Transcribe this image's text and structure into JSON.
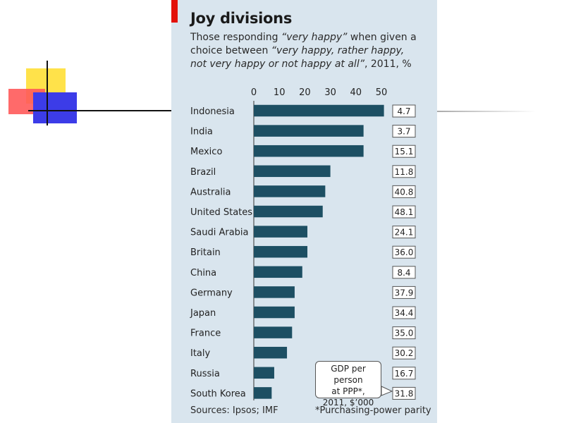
{
  "title": "Joy divisions",
  "subtitle_parts": [
    "Those responding ",
    "“very happy”",
    " when given a choice between ",
    "“very happy, rather happy, not very happy or not happy at all”",
    ", 2011, %"
  ],
  "sources": "Sources: Ipsos; IMF",
  "footnote": "*Purchasing-power parity",
  "callout_lines": [
    "GDP per person",
    "at PPP*,",
    "2011, $’000"
  ],
  "colors": {
    "bar": "#1d4f63",
    "panel": "#d9e5ee",
    "accent": "#e3120b"
  },
  "chart_data": {
    "type": "bar",
    "orientation": "horizontal",
    "xlim": [
      0,
      50
    ],
    "ticks": [
      0,
      10,
      20,
      30,
      40,
      50
    ],
    "categories": [
      "Indonesia",
      "India",
      "Mexico",
      "Brazil",
      "Australia",
      "United States",
      "Saudi Arabia",
      "Britain",
      "China",
      "Germany",
      "Japan",
      "France",
      "Italy",
      "Russia",
      "South Korea"
    ],
    "values": [
      51,
      43,
      43,
      30,
      28,
      27,
      21,
      21,
      19,
      16,
      16,
      15,
      13,
      8,
      7
    ],
    "gdp_labels": [
      "4.7",
      "3.7",
      "15.1",
      "11.8",
      "40.8",
      "48.1",
      "24.1",
      "36.0",
      "8.4",
      "37.9",
      "34.4",
      "35.0",
      "30.2",
      "16.7",
      "31.8"
    ]
  }
}
